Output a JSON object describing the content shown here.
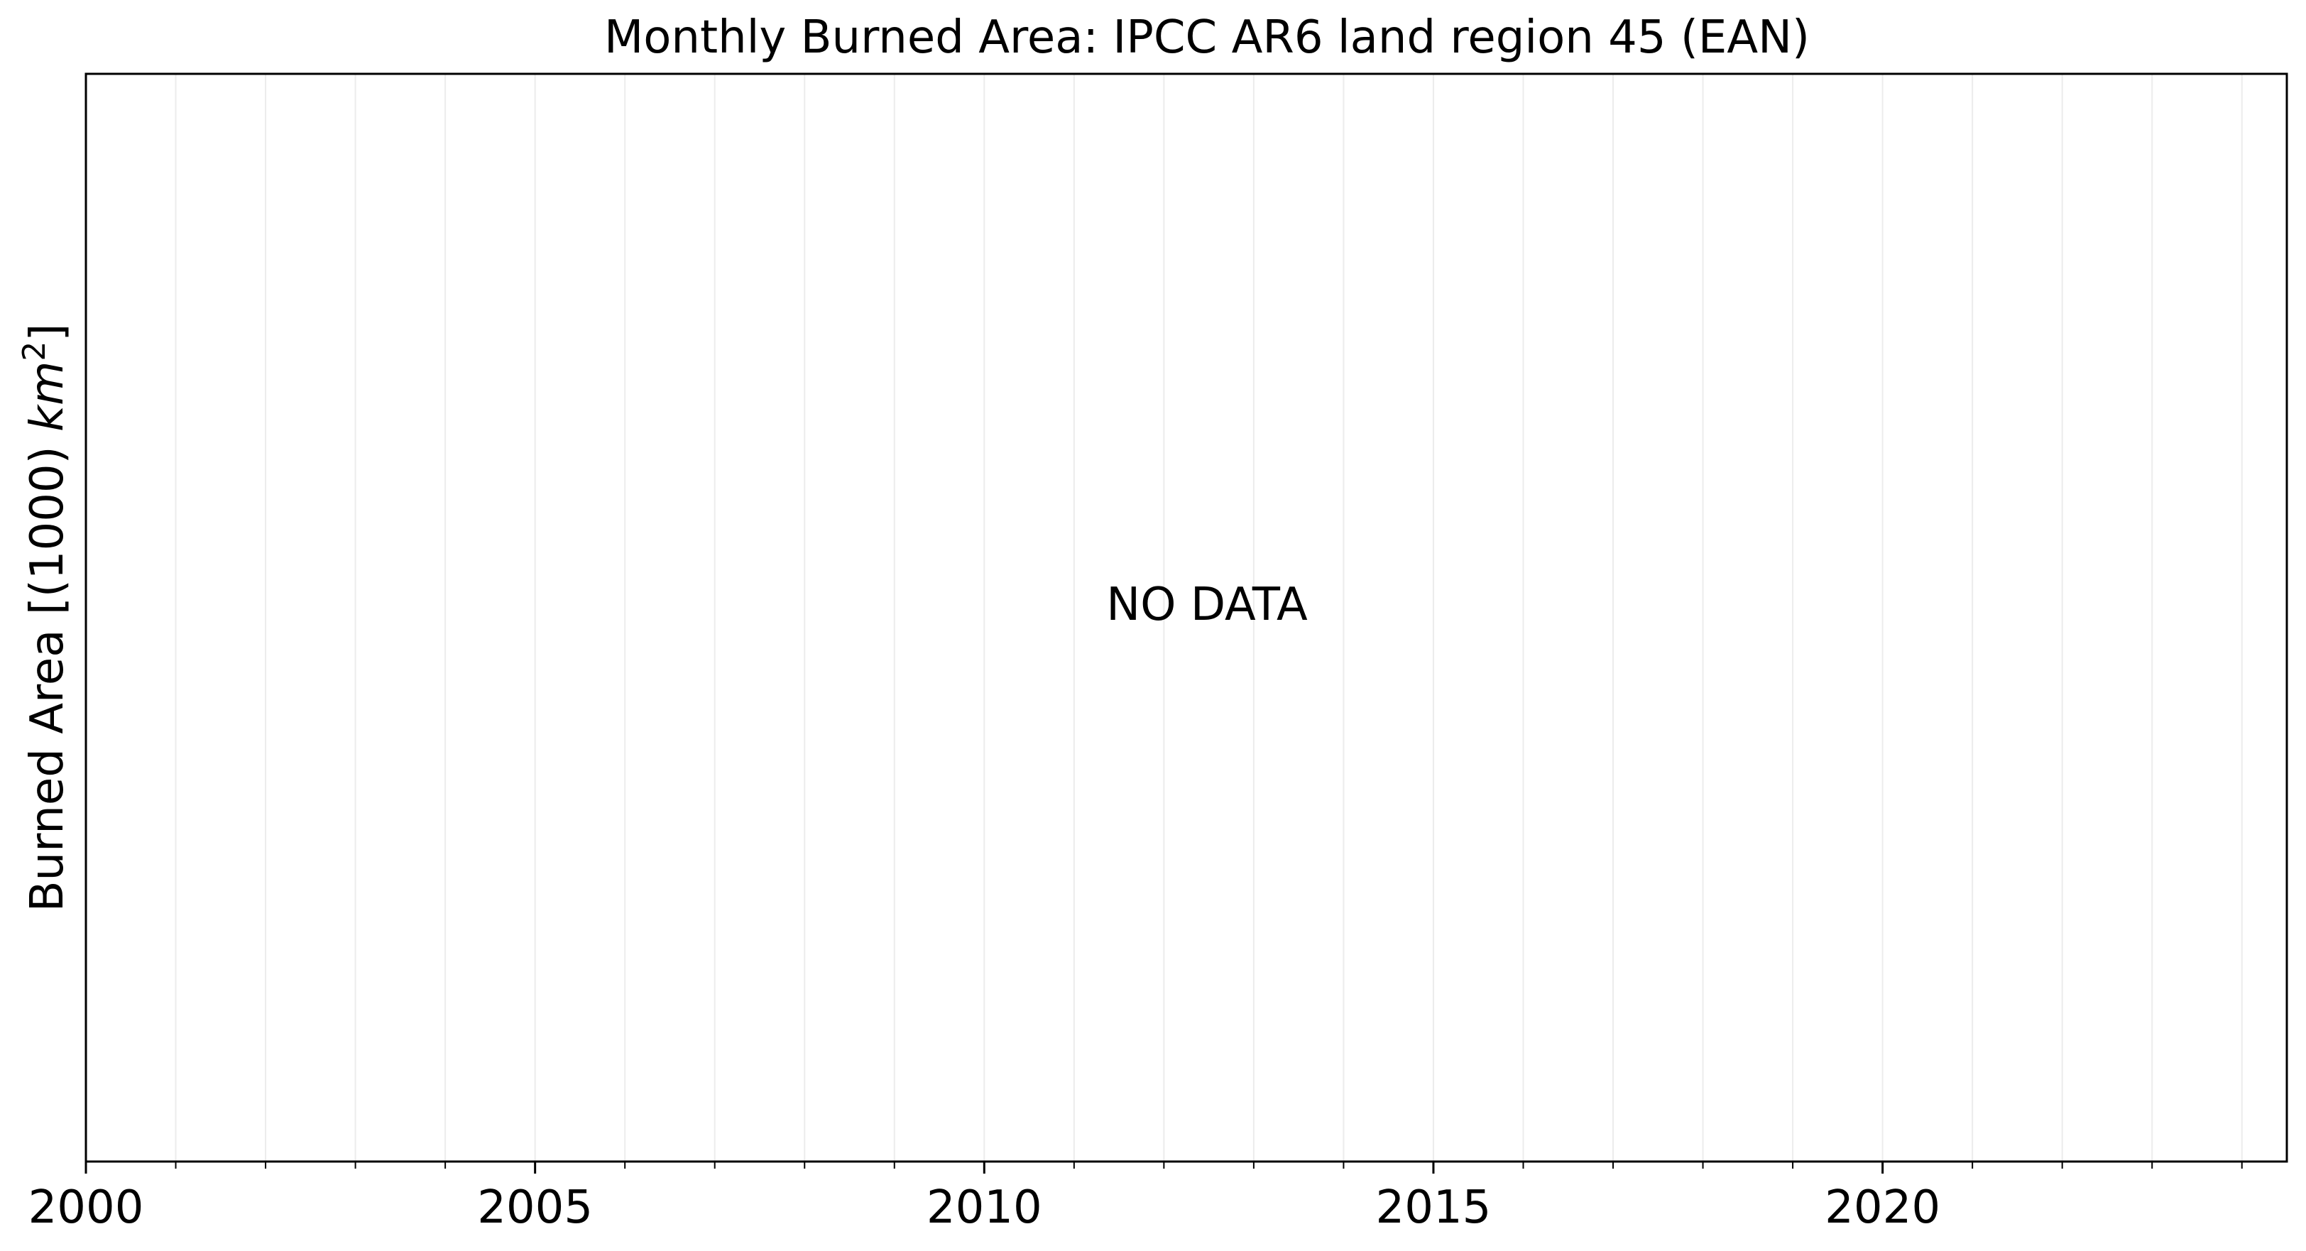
{
  "chart_data": {
    "type": "line",
    "title": "Monthly Burned Area: IPCC AR6 land region 45 (EAN)",
    "xlabel": "",
    "ylabel": "Burned Area [(1000) km²]",
    "ylabel_parts": {
      "text": "Burned Area [(1000) ",
      "unit": "km",
      "exponent": "2",
      "close": "]"
    },
    "annotation": "NO DATA",
    "xlim": [
      2000,
      2024.5
    ],
    "x_ticks": [
      {
        "value": 2000,
        "label": "2000"
      },
      {
        "value": 2005,
        "label": "2005"
      },
      {
        "value": 2010,
        "label": "2010"
      },
      {
        "value": 2015,
        "label": "2015"
      },
      {
        "value": 2020,
        "label": "2020"
      }
    ],
    "x_minor_step": 1,
    "grid": true,
    "series": []
  }
}
